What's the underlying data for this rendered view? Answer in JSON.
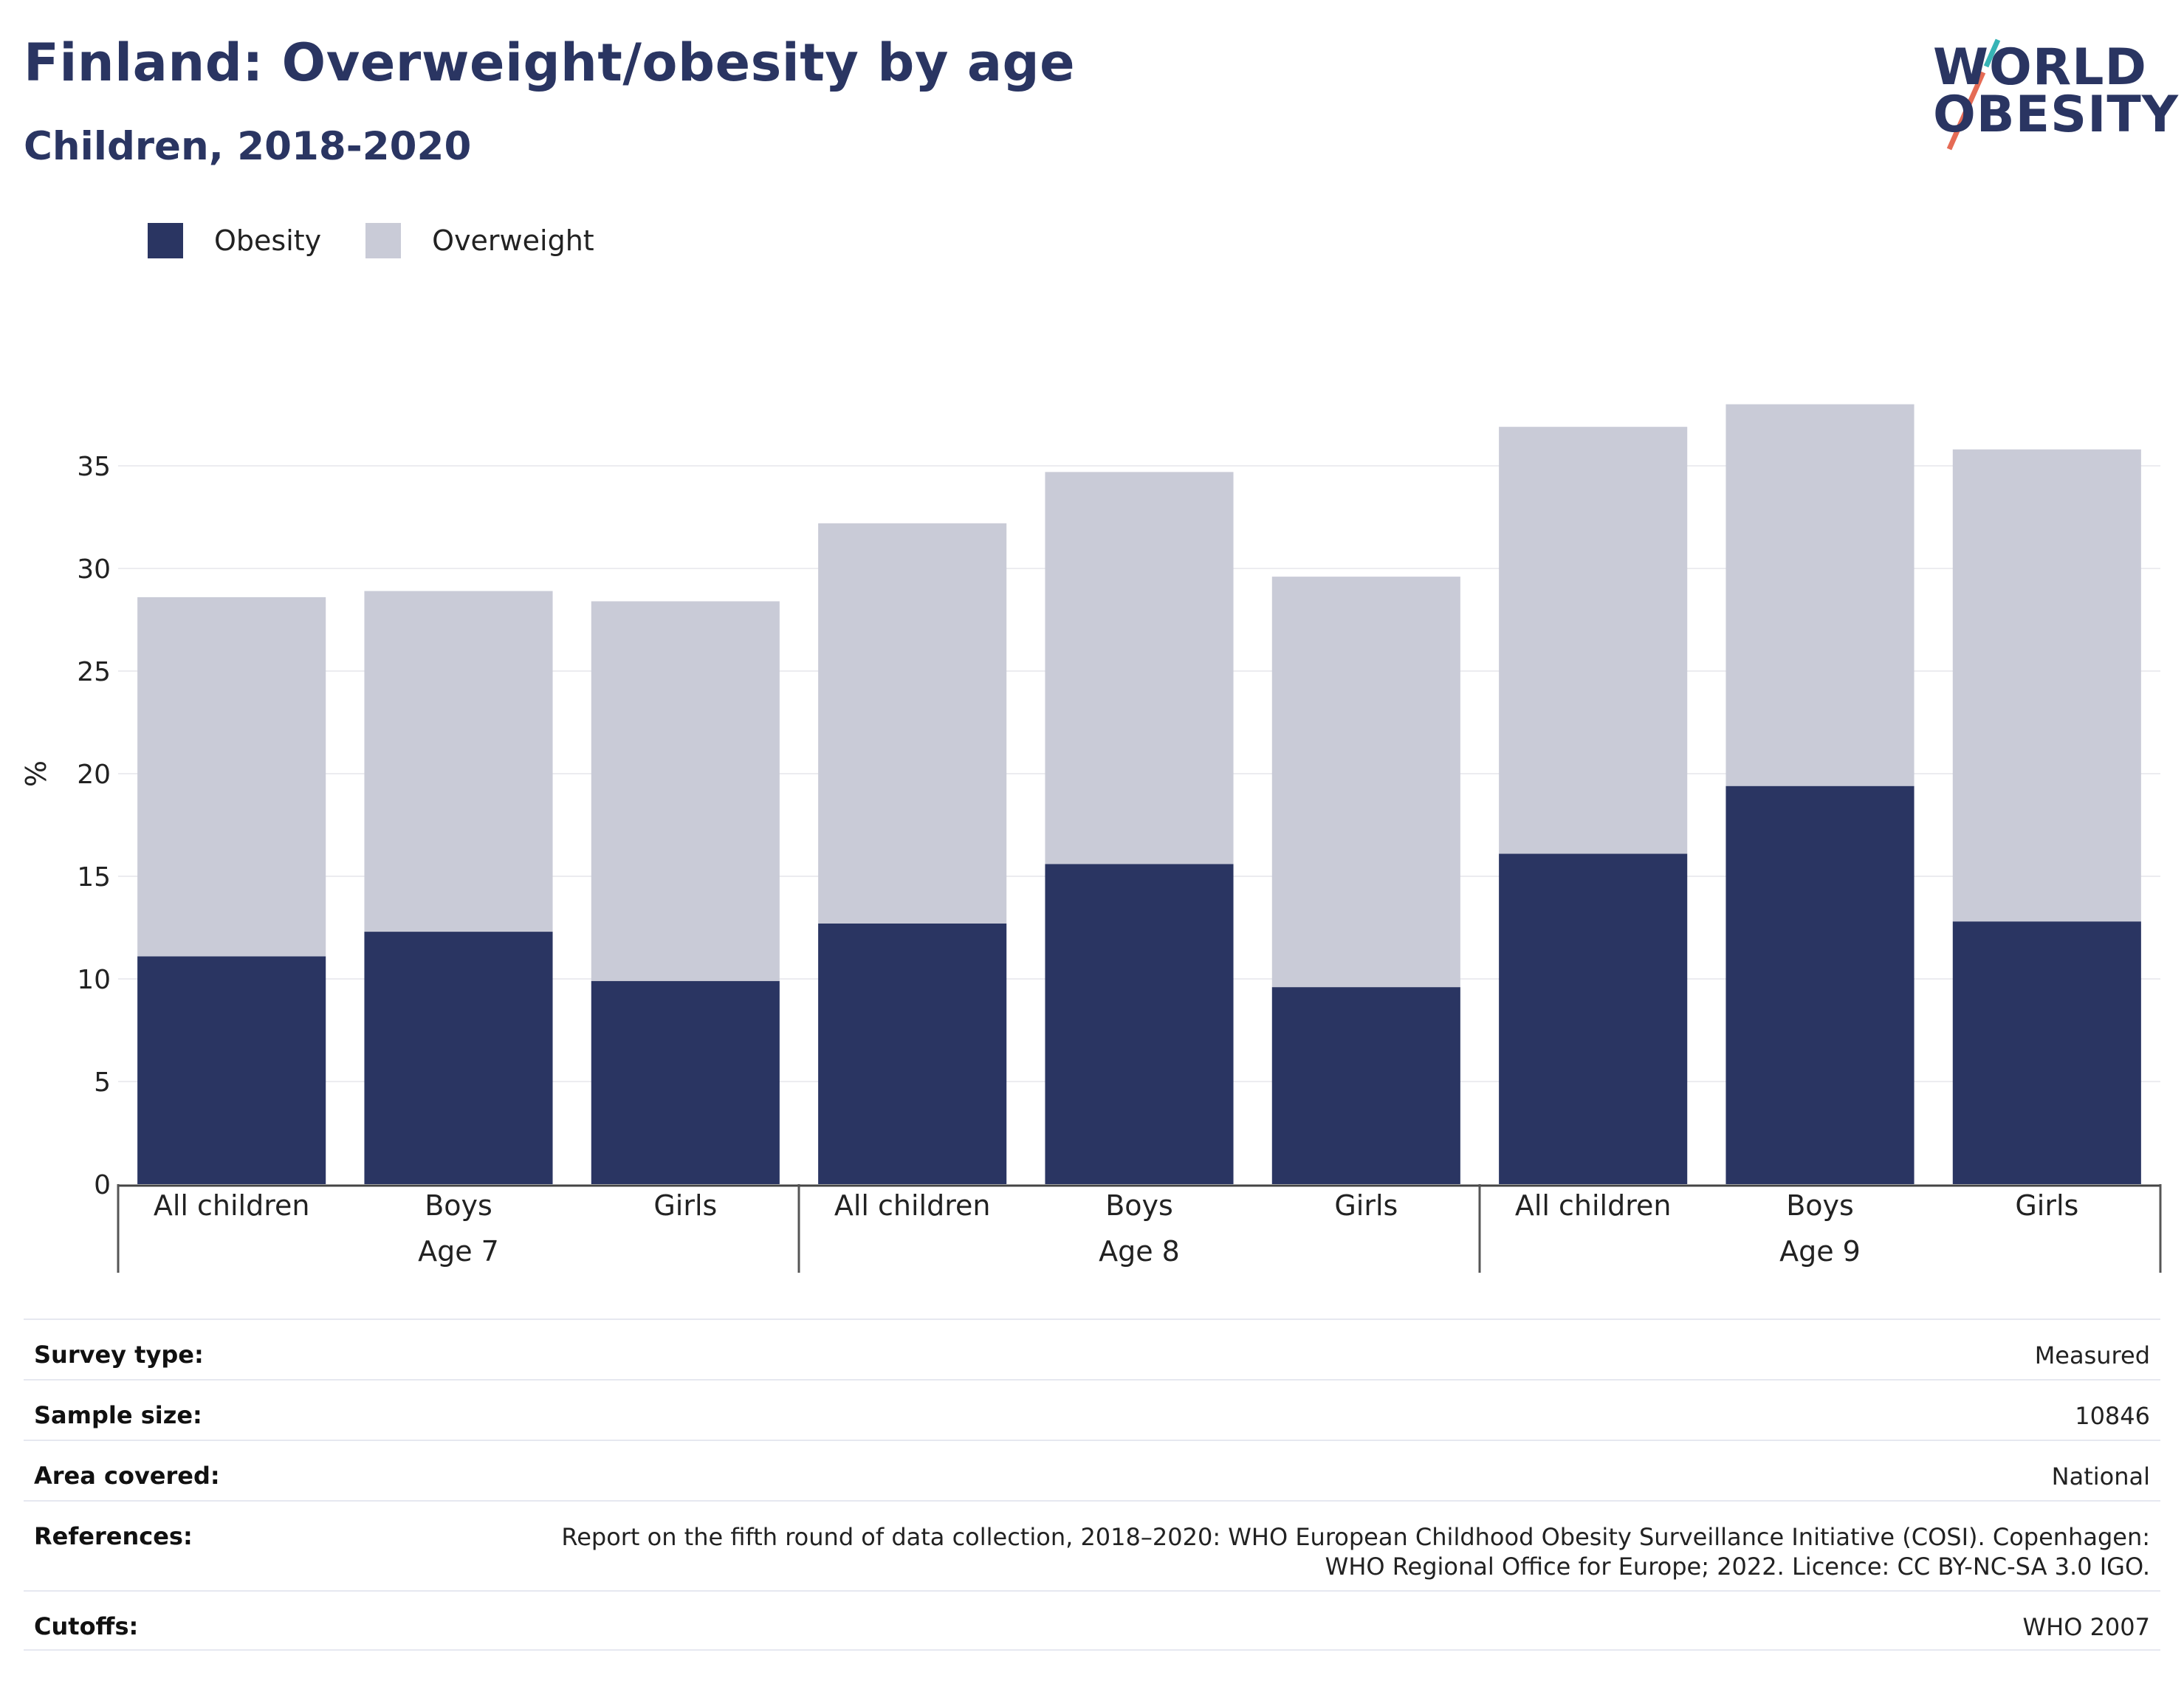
{
  "header": {
    "title": "Finland: Overweight/obesity by age",
    "subtitle": "Children, 2018-2020"
  },
  "logo": {
    "line1": "WORLD",
    "line2": "OBESITY"
  },
  "legend": [
    {
      "label": "Obesity",
      "color": "#2a3562"
    },
    {
      "label": "Overweight",
      "color": "#c9cbd7"
    }
  ],
  "chart_data": {
    "type": "bar",
    "stacked": true,
    "ylabel": "%",
    "ylim": [
      0,
      38
    ],
    "yticks": [
      0,
      5,
      10,
      15,
      20,
      25,
      30,
      35
    ],
    "grid": true,
    "legend_position": "top-left",
    "groups": [
      "Age 7",
      "Age 8",
      "Age 9"
    ],
    "categories": [
      "All children",
      "Boys",
      "Girls",
      "All children",
      "Boys",
      "Girls",
      "All children",
      "Boys",
      "Girls"
    ],
    "category_group": [
      "Age 7",
      "Age 7",
      "Age 7",
      "Age 8",
      "Age 8",
      "Age 8",
      "Age 9",
      "Age 9",
      "Age 9"
    ],
    "series": [
      {
        "name": "Obesity",
        "color": "#2a3562",
        "values": [
          11.1,
          12.3,
          9.9,
          12.7,
          15.6,
          9.6,
          16.1,
          19.4,
          12.8
        ]
      },
      {
        "name": "Overweight",
        "color": "#c9cbd7",
        "values": [
          17.5,
          16.6,
          18.5,
          19.5,
          19.1,
          20.0,
          20.8,
          18.6,
          23.0
        ]
      }
    ]
  },
  "info": [
    {
      "label": "Survey type:",
      "value": [
        "Measured"
      ]
    },
    {
      "label": "Sample size:",
      "value": [
        "10846"
      ]
    },
    {
      "label": "Area covered:",
      "value": [
        "National"
      ]
    },
    {
      "label": "References:",
      "value": [
        "Report on the fifth round of data collection, 2018–2020: WHO European Childhood Obesity Surveillance Initiative (COSI). Copenhagen:",
        "WHO Regional Office for Europe; 2022. Licence: CC BY-NC-SA 3.0 IGO."
      ]
    },
    {
      "label": "Cutoffs:",
      "value": [
        "WHO 2007"
      ]
    }
  ]
}
